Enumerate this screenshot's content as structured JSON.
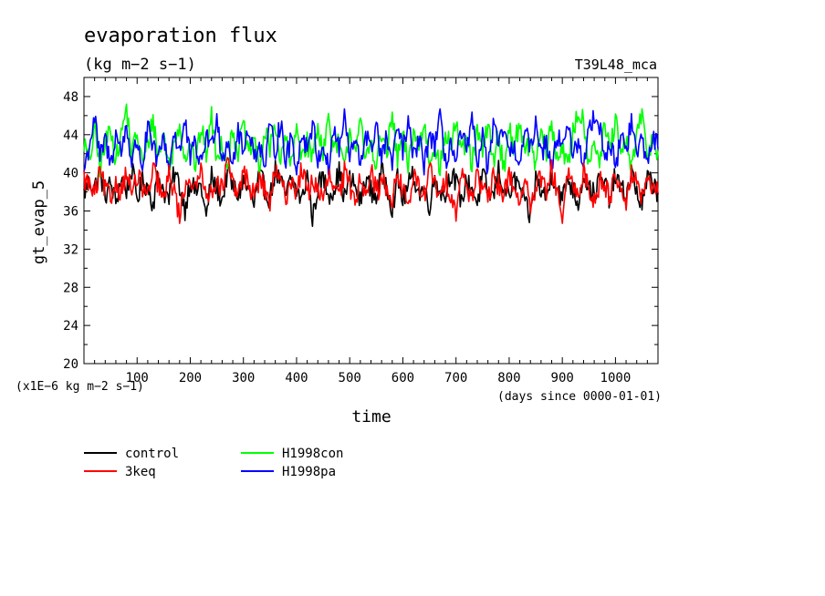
{
  "title": "evaporation flux",
  "units": "(kg m−2 s−1)",
  "run_label": "T39L48_mca",
  "y_axis_label": "gt_evap_5",
  "x_axis_label": "time",
  "y_scale_note": "(x1E−6 kg m−2 s−1)",
  "x_units_note": "(days since 0000-01-01)",
  "chart_data": {
    "type": "line",
    "title": "evaporation flux",
    "xlabel": "time",
    "ylabel": "gt_evap_5",
    "xlim": [
      0,
      1080
    ],
    "ylim": [
      20,
      50
    ],
    "x_ticks": [
      100,
      200,
      300,
      400,
      500,
      600,
      700,
      800,
      900,
      1000
    ],
    "y_ticks": [
      20,
      24,
      28,
      32,
      36,
      40,
      44,
      48
    ],
    "series_order_drawn": [
      "control",
      "H1998con",
      "H1998pa",
      "3keq"
    ],
    "series": [
      {
        "name": "control",
        "color": "#000000",
        "x": [
          0,
          10,
          20,
          30,
          40,
          50,
          60,
          70,
          80,
          90,
          100,
          110,
          120,
          130,
          140,
          150,
          160,
          170,
          180,
          190,
          200,
          210,
          220,
          230,
          240,
          250,
          260,
          270,
          280,
          290,
          300,
          310,
          320,
          330,
          340,
          350,
          360,
          370,
          380,
          390,
          400,
          410,
          420,
          430,
          440,
          450,
          460,
          470,
          480,
          490,
          500,
          510,
          520,
          530,
          540,
          550,
          560,
          570,
          580,
          590,
          600,
          610,
          620,
          630,
          640,
          650,
          660,
          670,
          680,
          690,
          700,
          710,
          720,
          730,
          740,
          750,
          760,
          770,
          780,
          790,
          800,
          810,
          820,
          830,
          840,
          850,
          860,
          870,
          880,
          890,
          900,
          910,
          920,
          930,
          940,
          950,
          960,
          970,
          980,
          990,
          1000,
          1010,
          1020,
          1030,
          1040,
          1050,
          1060,
          1070,
          1080
        ],
        "values": [
          37.8,
          39.2,
          38.4,
          40.1,
          37.6,
          38.9,
          36.9,
          39.5,
          38.2,
          40.4,
          37.4,
          39.0,
          38.6,
          36.8,
          39.8,
          38.1,
          37.2,
          40.0,
          38.7,
          36.2,
          39.3,
          37.9,
          38.8,
          35.2,
          39.6,
          38.3,
          37.1,
          40.2,
          38.5,
          37.7,
          39.1,
          38.0,
          36.6,
          39.7,
          38.4,
          37.3,
          40.3,
          38.9,
          37.6,
          39.4,
          38.2,
          37.0,
          39.9,
          34.9,
          38.6,
          39.5,
          37.8,
          38.3,
          40.1,
          37.4,
          39.2,
          38.7,
          36.9,
          39.6,
          38.1,
          37.5,
          40.0,
          38.8,
          36.4,
          39.3,
          37.2,
          38.6,
          39.8,
          37.9,
          38.4,
          36.7,
          39.5,
          38.2,
          37.6,
          40.2,
          38.9,
          37.1,
          39.0,
          38.5,
          36.8,
          39.7,
          38.0,
          37.4,
          40.4,
          38.3,
          37.8,
          39.1,
          38.6,
          36.5,
          35.4,
          39.4,
          38.1,
          37.3,
          39.9,
          38.7,
          37.0,
          39.6,
          38.2,
          36.9,
          40.0,
          38.5,
          37.7,
          39.2,
          38.8,
          37.2,
          39.8,
          38.3,
          37.5,
          40.1,
          38.0,
          36.6,
          39.3,
          38.9,
          37.9
        ],
        "min": 34.4,
        "max": 41.3
      },
      {
        "name": "3keq",
        "color": "#ff0000",
        "x": [
          0,
          10,
          20,
          30,
          40,
          50,
          60,
          70,
          80,
          90,
          100,
          110,
          120,
          130,
          140,
          150,
          160,
          170,
          180,
          190,
          200,
          210,
          220,
          230,
          240,
          250,
          260,
          270,
          280,
          290,
          300,
          310,
          320,
          330,
          340,
          350,
          360,
          370,
          380,
          390,
          400,
          410,
          420,
          430,
          440,
          450,
          460,
          470,
          480,
          490,
          500,
          510,
          520,
          530,
          540,
          550,
          560,
          570,
          580,
          590,
          600,
          610,
          620,
          630,
          640,
          650,
          660,
          670,
          680,
          690,
          700,
          710,
          720,
          730,
          740,
          750,
          760,
          770,
          780,
          790,
          800,
          810,
          820,
          830,
          840,
          850,
          860,
          870,
          880,
          890,
          900,
          910,
          920,
          930,
          940,
          950,
          960,
          970,
          980,
          990,
          1000,
          1010,
          1020,
          1030,
          1040,
          1050,
          1060,
          1070,
          1080
        ],
        "values": [
          39.4,
          38.7,
          37.6,
          39.9,
          38.3,
          37.2,
          39.1,
          38.0,
          40.3,
          37.8,
          39.5,
          38.6,
          37.4,
          40.1,
          38.9,
          37.0,
          39.7,
          38.2,
          35.3,
          38.8,
          39.6,
          37.9,
          40.5,
          38.4,
          37.3,
          39.8,
          38.1,
          41.2,
          38.6,
          37.7,
          40.0,
          38.9,
          37.5,
          39.4,
          38.2,
          36.9,
          40.2,
          38.8,
          37.6,
          39.3,
          38.0,
          40.6,
          37.8,
          39.1,
          38.5,
          36.8,
          39.7,
          38.3,
          37.4,
          40.0,
          38.7,
          37.1,
          39.5,
          38.2,
          40.4,
          37.9,
          39.0,
          38.6,
          37.3,
          39.9,
          38.1,
          36.6,
          39.6,
          38.4,
          37.7,
          40.3,
          38.9,
          37.2,
          39.2,
          38.0,
          36.1,
          39.8,
          38.5,
          37.6,
          40.1,
          38.2,
          37.0,
          39.4,
          38.8,
          37.5,
          40.0,
          38.3,
          36.9,
          39.7,
          35.6,
          38.6,
          39.3,
          37.8,
          40.2,
          38.1,
          35.3,
          39.5,
          38.7,
          37.4,
          40.4,
          38.2,
          36.8,
          39.1,
          38.9,
          37.6,
          39.9,
          38.4,
          37.1,
          40.1,
          38.6,
          37.3,
          39.6,
          38.0,
          37.9
        ],
        "min": 34.7,
        "max": 41.6
      },
      {
        "name": "H1998con",
        "color": "#00ff00",
        "x": [
          0,
          10,
          20,
          30,
          40,
          50,
          60,
          70,
          80,
          90,
          100,
          110,
          120,
          130,
          140,
          150,
          160,
          170,
          180,
          190,
          200,
          210,
          220,
          230,
          240,
          250,
          260,
          270,
          280,
          290,
          300,
          310,
          320,
          330,
          340,
          350,
          360,
          370,
          380,
          390,
          400,
          410,
          420,
          430,
          440,
          450,
          460,
          470,
          480,
          490,
          500,
          510,
          520,
          530,
          540,
          550,
          560,
          570,
          580,
          590,
          600,
          610,
          620,
          630,
          640,
          650,
          660,
          670,
          680,
          690,
          700,
          710,
          720,
          730,
          740,
          750,
          760,
          770,
          780,
          790,
          800,
          810,
          820,
          830,
          840,
          850,
          860,
          870,
          880,
          890,
          900,
          910,
          920,
          930,
          940,
          950,
          960,
          970,
          980,
          990,
          1000,
          1010,
          1020,
          1030,
          1040,
          1050,
          1060,
          1070,
          1080
        ],
        "values": [
          43.2,
          41.0,
          44.6,
          40.4,
          42.8,
          45.1,
          41.3,
          43.9,
          47.0,
          41.8,
          44.3,
          40.9,
          43.0,
          45.7,
          41.6,
          44.1,
          40.7,
          42.9,
          45.3,
          41.4,
          43.6,
          40.6,
          44.8,
          42.1,
          45.9,
          41.2,
          43.4,
          40.8,
          44.5,
          42.3,
          45.0,
          41.5,
          43.8,
          40.3,
          44.2,
          42.6,
          45.4,
          41.1,
          43.7,
          40.5,
          44.7,
          42.0,
          43.1,
          41.7,
          44.9,
          42.4,
          45.6,
          41.9,
          43.3,
          40.2,
          44.4,
          42.7,
          45.2,
          41.0,
          43.5,
          40.9,
          44.0,
          42.2,
          45.8,
          41.4,
          43.9,
          40.6,
          44.6,
          42.5,
          45.3,
          41.2,
          43.2,
          40.4,
          44.1,
          42.8,
          45.5,
          41.6,
          43.6,
          40.8,
          44.3,
          42.0,
          45.1,
          41.3,
          43.8,
          40.5,
          44.8,
          42.6,
          45.7,
          41.8,
          43.4,
          40.7,
          44.5,
          42.1,
          45.0,
          41.5,
          43.0,
          40.3,
          44.2,
          46.4,
          45.6,
          41.1,
          43.7,
          40.9,
          44.9,
          42.4,
          45.4,
          41.7,
          43.3,
          40.6,
          44.0,
          45.9,
          41.9,
          43.5,
          42.3
        ],
        "min": 39.6,
        "max": 47.2
      },
      {
        "name": "H1998pa",
        "color": "#0000ff",
        "x": [
          0,
          10,
          20,
          30,
          40,
          50,
          60,
          70,
          80,
          90,
          100,
          110,
          120,
          130,
          140,
          150,
          160,
          170,
          180,
          190,
          200,
          210,
          220,
          230,
          240,
          250,
          260,
          270,
          280,
          290,
          300,
          310,
          320,
          330,
          340,
          350,
          360,
          370,
          380,
          390,
          400,
          410,
          420,
          430,
          440,
          450,
          460,
          470,
          480,
          490,
          500,
          510,
          520,
          530,
          540,
          550,
          560,
          570,
          580,
          590,
          600,
          610,
          620,
          630,
          640,
          650,
          660,
          670,
          680,
          690,
          700,
          710,
          720,
          730,
          740,
          750,
          760,
          770,
          780,
          790,
          800,
          810,
          820,
          830,
          840,
          850,
          860,
          870,
          880,
          890,
          900,
          910,
          920,
          930,
          940,
          950,
          960,
          970,
          980,
          990,
          1000,
          1010,
          1020,
          1030,
          1040,
          1050,
          1060,
          1070,
          1080
        ],
        "values": [
          40.2,
          42.9,
          45.8,
          41.4,
          43.6,
          40.8,
          44.2,
          42.1,
          45.1,
          41.0,
          43.5,
          40.6,
          44.7,
          42.4,
          41.3,
          43.9,
          40.5,
          44.4,
          42.2,
          45.3,
          41.5,
          43.0,
          40.7,
          44.1,
          42.6,
          46.3,
          41.2,
          43.7,
          40.9,
          44.5,
          42.0,
          45.0,
          41.6,
          43.3,
          40.4,
          44.8,
          42.3,
          45.5,
          41.1,
          43.8,
          40.6,
          44.0,
          42.7,
          45.2,
          41.4,
          43.1,
          40.3,
          44.6,
          42.5,
          45.9,
          41.7,
          43.4,
          40.8,
          44.3,
          42.1,
          45.4,
          41.2,
          43.9,
          40.5,
          44.9,
          42.4,
          45.0,
          41.6,
          43.6,
          40.7,
          44.2,
          42.8,
          45.7,
          41.0,
          43.2,
          40.9,
          44.4,
          42.0,
          45.3,
          41.3,
          43.7,
          40.4,
          44.8,
          42.6,
          45.1,
          41.5,
          43.0,
          40.6,
          44.5,
          42.2,
          45.8,
          41.8,
          43.5,
          40.8,
          44.1,
          42.7,
          45.6,
          41.1,
          43.8,
          40.3,
          44.6,
          46.1,
          45.2,
          41.4,
          43.3,
          40.5,
          44.0,
          42.3,
          45.5,
          41.7,
          43.9,
          40.7,
          44.3,
          42.5
        ],
        "min": 39.8,
        "max": 46.7
      }
    ],
    "legend": {
      "placement": "below-left",
      "entries": [
        "control",
        "H1998con",
        "3keq",
        "H1998pa"
      ]
    },
    "grid": false
  }
}
